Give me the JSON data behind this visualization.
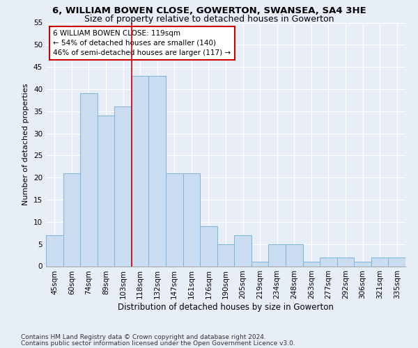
{
  "title1": "6, WILLIAM BOWEN CLOSE, GOWERTON, SWANSEA, SA4 3HE",
  "title2": "Size of property relative to detached houses in Gowerton",
  "xlabel": "Distribution of detached houses by size in Gowerton",
  "ylabel": "Number of detached properties",
  "categories": [
    "45sqm",
    "60sqm",
    "74sqm",
    "89sqm",
    "103sqm",
    "118sqm",
    "132sqm",
    "147sqm",
    "161sqm",
    "176sqm",
    "190sqm",
    "205sqm",
    "219sqm",
    "234sqm",
    "248sqm",
    "263sqm",
    "277sqm",
    "292sqm",
    "306sqm",
    "321sqm",
    "335sqm"
  ],
  "values": [
    7,
    21,
    39,
    34,
    36,
    43,
    43,
    21,
    21,
    9,
    5,
    7,
    1,
    5,
    5,
    1,
    2,
    2,
    1,
    2,
    2
  ],
  "bar_color": "#c9dcf0",
  "bar_edge_color": "#7fb3d9",
  "highlight_bin_index": 5,
  "highlight_line_color": "#cc0000",
  "annotation_text": "6 WILLIAM BOWEN CLOSE: 119sqm\n← 54% of detached houses are smaller (140)\n46% of semi-detached houses are larger (117) →",
  "annotation_box_color": "white",
  "annotation_box_edge_color": "#cc0000",
  "ylim": [
    0,
    55
  ],
  "yticks": [
    0,
    5,
    10,
    15,
    20,
    25,
    30,
    35,
    40,
    45,
    50,
    55
  ],
  "footer1": "Contains HM Land Registry data © Crown copyright and database right 2024.",
  "footer2": "Contains public sector information licensed under the Open Government Licence v3.0.",
  "background_color": "#e8eef8",
  "grid_color": "#ffffff",
  "title1_fontsize": 9.5,
  "title2_fontsize": 9,
  "xlabel_fontsize": 8.5,
  "ylabel_fontsize": 8,
  "tick_fontsize": 7.5,
  "annotation_fontsize": 7.5,
  "footer_fontsize": 6.5
}
